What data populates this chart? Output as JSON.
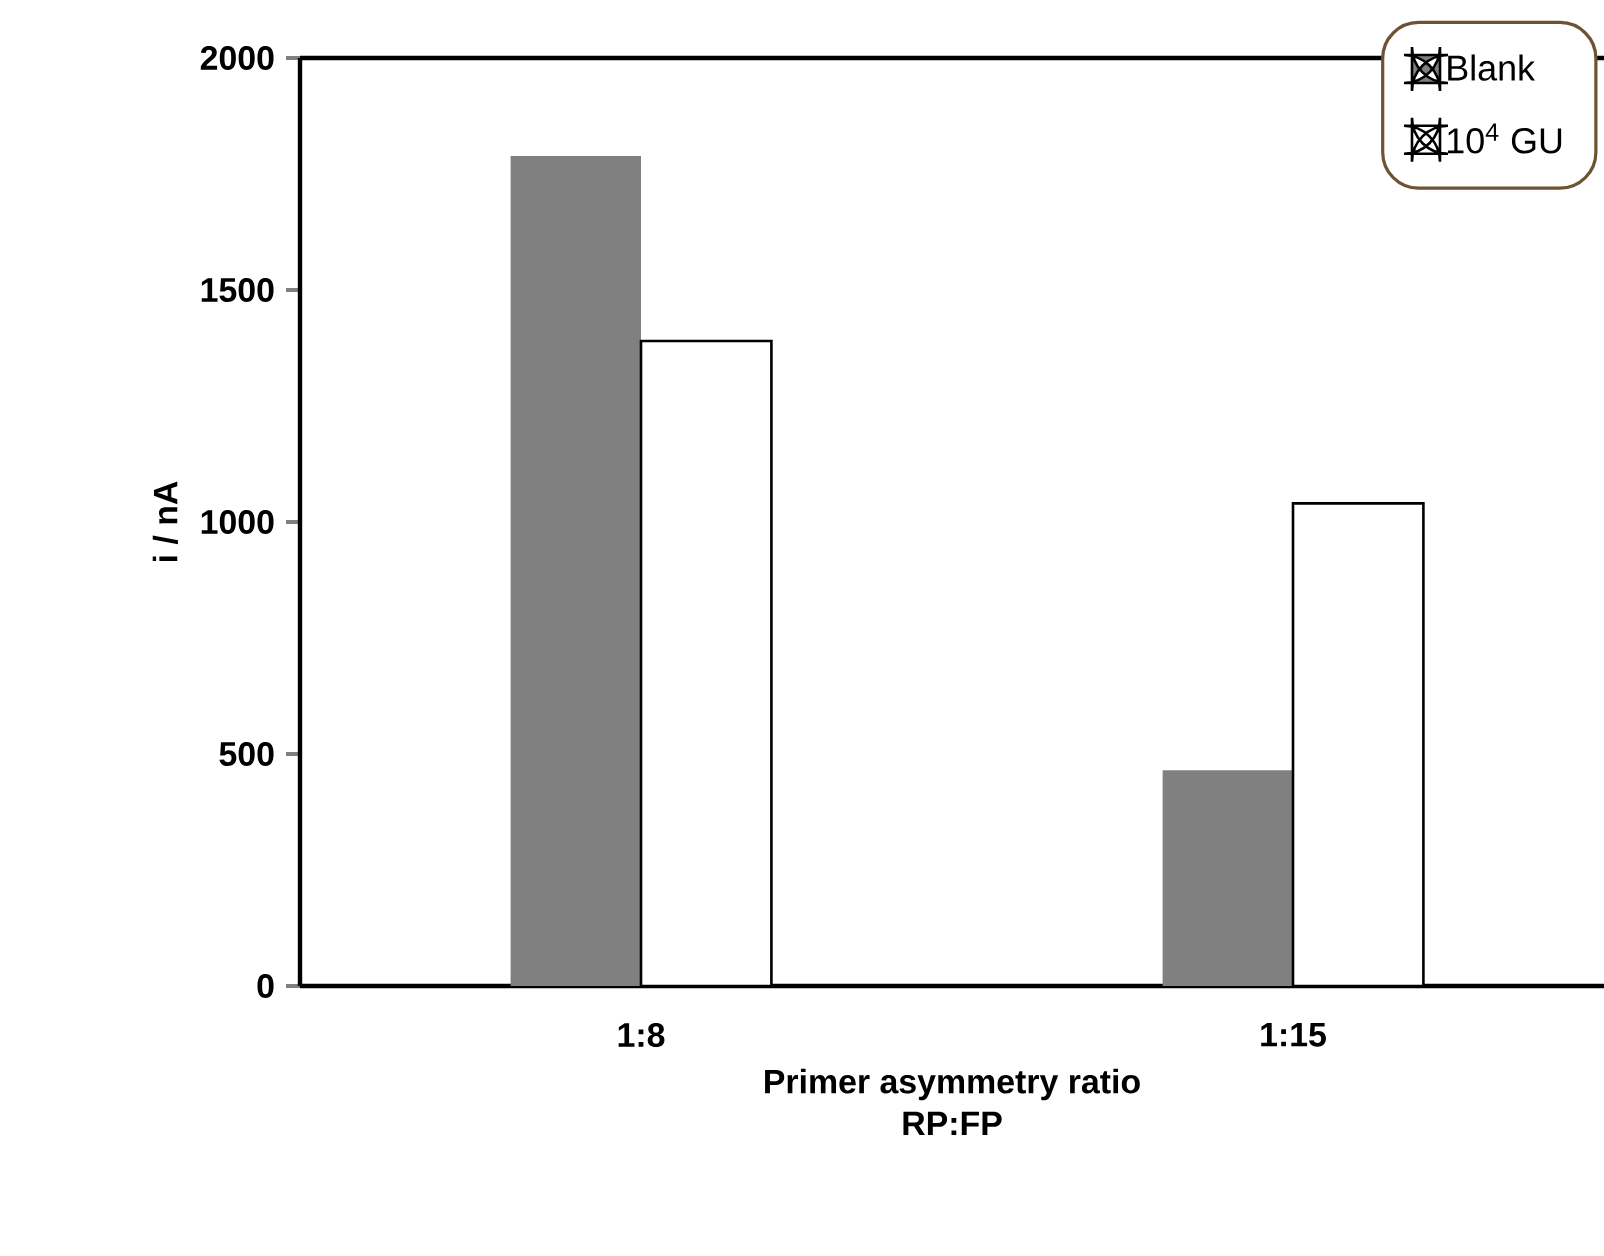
{
  "chart_data": {
    "type": "bar",
    "xlabel": "Primer asymmetry ratio\nRP:FP",
    "ylabel": "i / nA",
    "categories": [
      "1:8",
      "1:15"
    ],
    "series": [
      {
        "name": "Blank",
        "color": "#808080",
        "values": [
          1789,
          465
        ]
      },
      {
        "name": "10$^{4}$ GU",
        "color": "#ffffff",
        "values": [
          1390,
          1040
        ]
      }
    ],
    "ylim": [
      0,
      2000
    ],
    "yticks": [
      0,
      500,
      1000,
      1500,
      2000
    ],
    "legend": "top right",
    "grid": false
  }
}
